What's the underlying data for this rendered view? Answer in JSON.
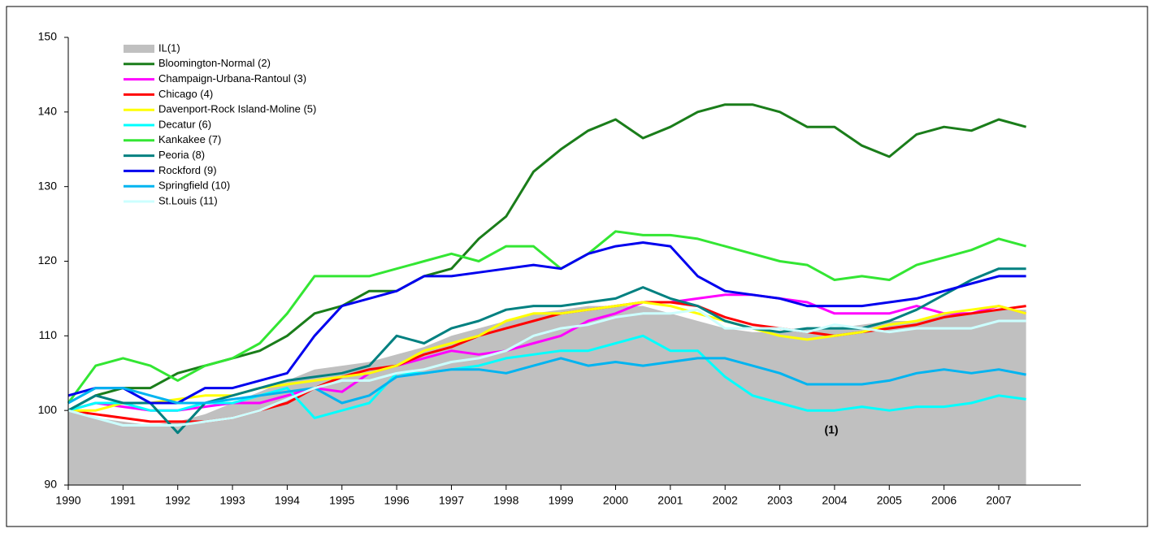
{
  "chart_data": {
    "type": "line",
    "x": [
      1990,
      1990.5,
      1991,
      1991.5,
      1992,
      1992.5,
      1993,
      1993.5,
      1994,
      1994.5,
      1995,
      1995.5,
      1996,
      1996.5,
      1997,
      1997.5,
      1998,
      1998.5,
      1999,
      1999.5,
      2000,
      2000.5,
      2001,
      2001.5,
      2002,
      2002.5,
      2003,
      2003.5,
      2004,
      2004.5,
      2005,
      2005.5,
      2006,
      2006.5,
      2007,
      2007.5
    ],
    "series": [
      {
        "name": "IL(1)",
        "color": "#c0c0c0",
        "style": "area",
        "values": [
          100,
          99,
          98.5,
          98,
          98.5,
          99.5,
          101,
          102.5,
          104,
          105.5,
          106,
          106.5,
          107.5,
          108.5,
          110,
          111,
          112,
          113,
          113.5,
          114,
          114,
          114,
          113,
          112,
          111,
          110.5,
          110.5,
          111,
          111,
          111.5,
          112,
          112,
          113,
          113,
          113.5,
          113.5
        ]
      },
      {
        "name": "Bloomington-Normal (2)",
        "color": "#1a7d1a",
        "values": [
          100,
          102,
          103,
          103,
          105,
          106,
          107,
          108,
          110,
          113,
          114,
          116,
          116,
          118,
          119,
          123,
          126,
          132,
          135,
          137.5,
          139,
          136.5,
          138,
          140,
          141,
          141,
          140,
          138,
          138,
          135.5,
          134,
          137,
          138,
          137.5,
          139,
          138
        ]
      },
      {
        "name": "Champaign-Urbana-Rantoul (3)",
        "color": "#ff00ff",
        "values": [
          100,
          101,
          100.5,
          100,
          100,
          100.5,
          101,
          101,
          102,
          103,
          102.5,
          105,
          106,
          107,
          108,
          107.5,
          108,
          109,
          110,
          112,
          113,
          114.5,
          114.5,
          115,
          115.5,
          115.5,
          115,
          114.5,
          113,
          113,
          113,
          114,
          113,
          113,
          114,
          113
        ]
      },
      {
        "name": "Chicago (4)",
        "color": "#ff0000",
        "values": [
          100,
          99.5,
          99,
          98.5,
          98.5,
          98.5,
          99,
          100,
          101,
          103,
          104.5,
          105.5,
          106,
          107.5,
          108.5,
          110,
          111,
          112,
          113,
          113.5,
          114,
          114.5,
          114.5,
          114,
          112.5,
          111.5,
          111,
          110.5,
          110,
          110.5,
          111,
          111.5,
          112.5,
          113,
          113.5,
          114
        ]
      },
      {
        "name": "Davenport-Rock Island-Moline (5)",
        "color": "#ffff00",
        "values": [
          100,
          100,
          101,
          101,
          101.5,
          102,
          102,
          103,
          103.5,
          104,
          104.5,
          105,
          106,
          108,
          109,
          110,
          112,
          113,
          113,
          113.5,
          114,
          114.5,
          114,
          113,
          112,
          111,
          110,
          109.5,
          110,
          110.5,
          111.5,
          112,
          113,
          113.5,
          114,
          113
        ]
      },
      {
        "name": "Decatur (6)",
        "color": "#00ffff",
        "values": [
          100,
          101,
          101,
          100,
          100,
          101,
          101,
          102,
          103,
          99,
          100,
          101,
          105,
          105,
          105.5,
          106,
          107,
          107.5,
          108,
          108,
          109,
          110,
          108,
          108,
          104.5,
          102,
          101,
          100,
          100,
          100.5,
          100,
          100.5,
          100.5,
          101,
          102,
          101.5
        ]
      },
      {
        "name": "Kankakee (7)",
        "color": "#33e633",
        "values": [
          101,
          106,
          107,
          106,
          104,
          106,
          107,
          109,
          113,
          118,
          118,
          118,
          119,
          120,
          121,
          120,
          122,
          122,
          119,
          121,
          124,
          123.5,
          123.5,
          123,
          122,
          121,
          120,
          119.5,
          117.5,
          118,
          117.5,
          119.5,
          120.5,
          121.5,
          123,
          122
        ]
      },
      {
        "name": "Peoria (8)",
        "color": "#008080",
        "values": [
          100,
          102,
          101,
          101,
          97,
          101,
          102,
          103,
          104,
          104.5,
          105,
          106,
          110,
          109,
          111,
          112,
          113.5,
          114,
          114,
          114.5,
          115,
          116.5,
          115,
          114,
          112,
          111,
          110.5,
          111,
          111,
          111,
          112,
          113.5,
          115.5,
          117.5,
          119,
          119
        ]
      },
      {
        "name": "Rockford (9)",
        "color": "#0000ee",
        "values": [
          102,
          103,
          103,
          101,
          101,
          103,
          103,
          104,
          105,
          110,
          114,
          115,
          116,
          118,
          118,
          118.5,
          119,
          119.5,
          119,
          121,
          122,
          122.5,
          122,
          118,
          116,
          115.5,
          115,
          114,
          114,
          114,
          114.5,
          115,
          116,
          117,
          118,
          118
        ]
      },
      {
        "name": "Springfield (10)",
        "color": "#00b4f0",
        "values": [
          101,
          103,
          103,
          102,
          101,
          101,
          101.5,
          102,
          102.5,
          103,
          101,
          102,
          104.5,
          105,
          105.5,
          105.5,
          105,
          106,
          107,
          106,
          106.5,
          106,
          106.5,
          107,
          107,
          106,
          105,
          103.5,
          103.5,
          103.5,
          104,
          105,
          105.5,
          105,
          105.5,
          104.8
        ]
      },
      {
        "name": "St.Louis (11)",
        "color": "#ccffff",
        "values": [
          100,
          99,
          98,
          98,
          98,
          98.5,
          99,
          100,
          101.5,
          103,
          104,
          104,
          105,
          105.5,
          106.5,
          107,
          108,
          110,
          111,
          111.5,
          112.5,
          113,
          113,
          113.5,
          111,
          111,
          111,
          110.5,
          111.5,
          111,
          110.5,
          111,
          111,
          111,
          112,
          112
        ]
      }
    ],
    "annotations": [
      "(1)"
    ],
    "xlim": [
      1990,
      2008.5
    ],
    "xticks": [
      1990,
      1991,
      1992,
      1993,
      1994,
      1995,
      1996,
      1997,
      1998,
      1999,
      2000,
      2001,
      2002,
      2003,
      2004,
      2005,
      2006,
      2007
    ],
    "ylim": [
      90,
      150
    ],
    "yticks": [
      90,
      100,
      110,
      120,
      130,
      140,
      150
    ],
    "grid": false,
    "legend": "top-left"
  }
}
